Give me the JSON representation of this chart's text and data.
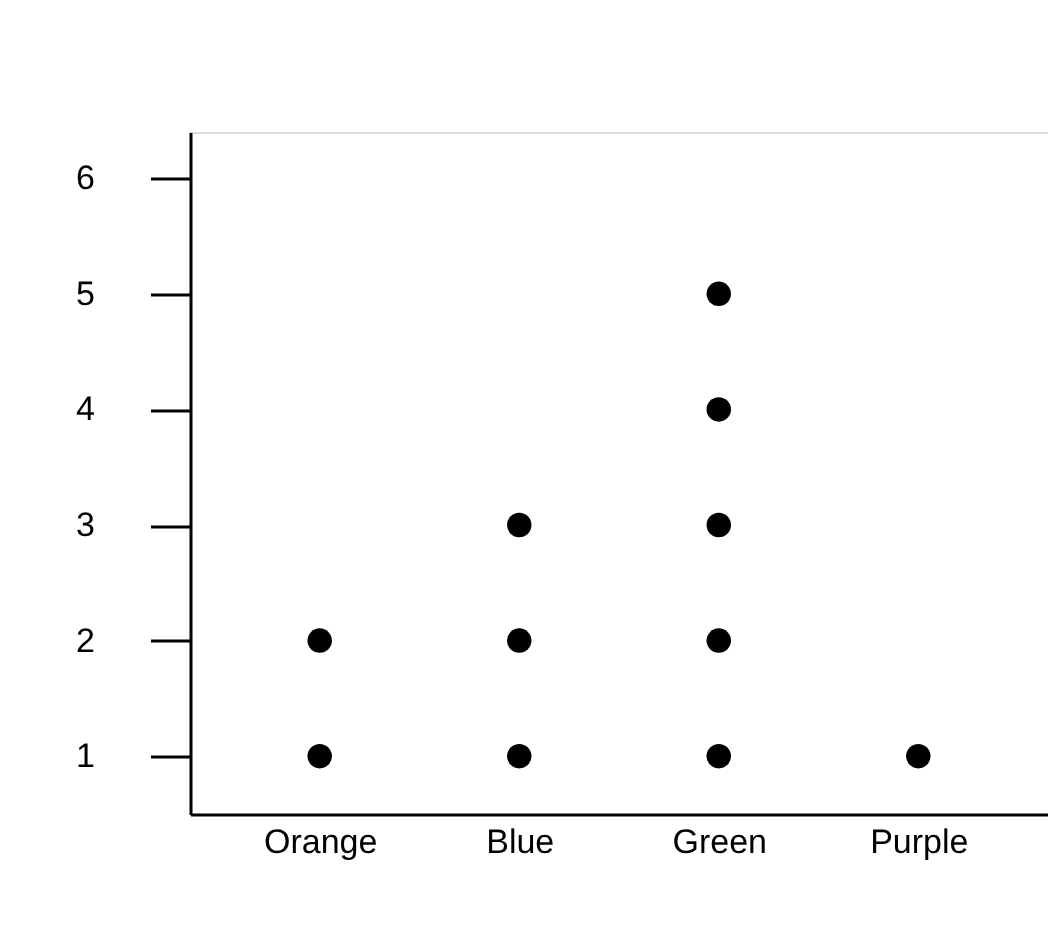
{
  "chart_data": {
    "type": "scatter",
    "categories": [
      "Orange",
      "Blue",
      "Green",
      "Purple"
    ],
    "series": [
      {
        "color": "#000000",
        "x": [
          "Orange",
          "Orange",
          "Blue",
          "Blue",
          "Blue",
          "Green",
          "Green",
          "Green",
          "Green",
          "Green",
          "Purple"
        ],
        "values": [
          1,
          2,
          1,
          2,
          3,
          1,
          2,
          3,
          4,
          5,
          1
        ]
      }
    ],
    "ylim": [
      0.5,
      6.4
    ],
    "yticks": [
      1,
      2,
      3,
      4,
      5,
      6
    ],
    "grid": false,
    "legend": false,
    "marker": "circle"
  }
}
